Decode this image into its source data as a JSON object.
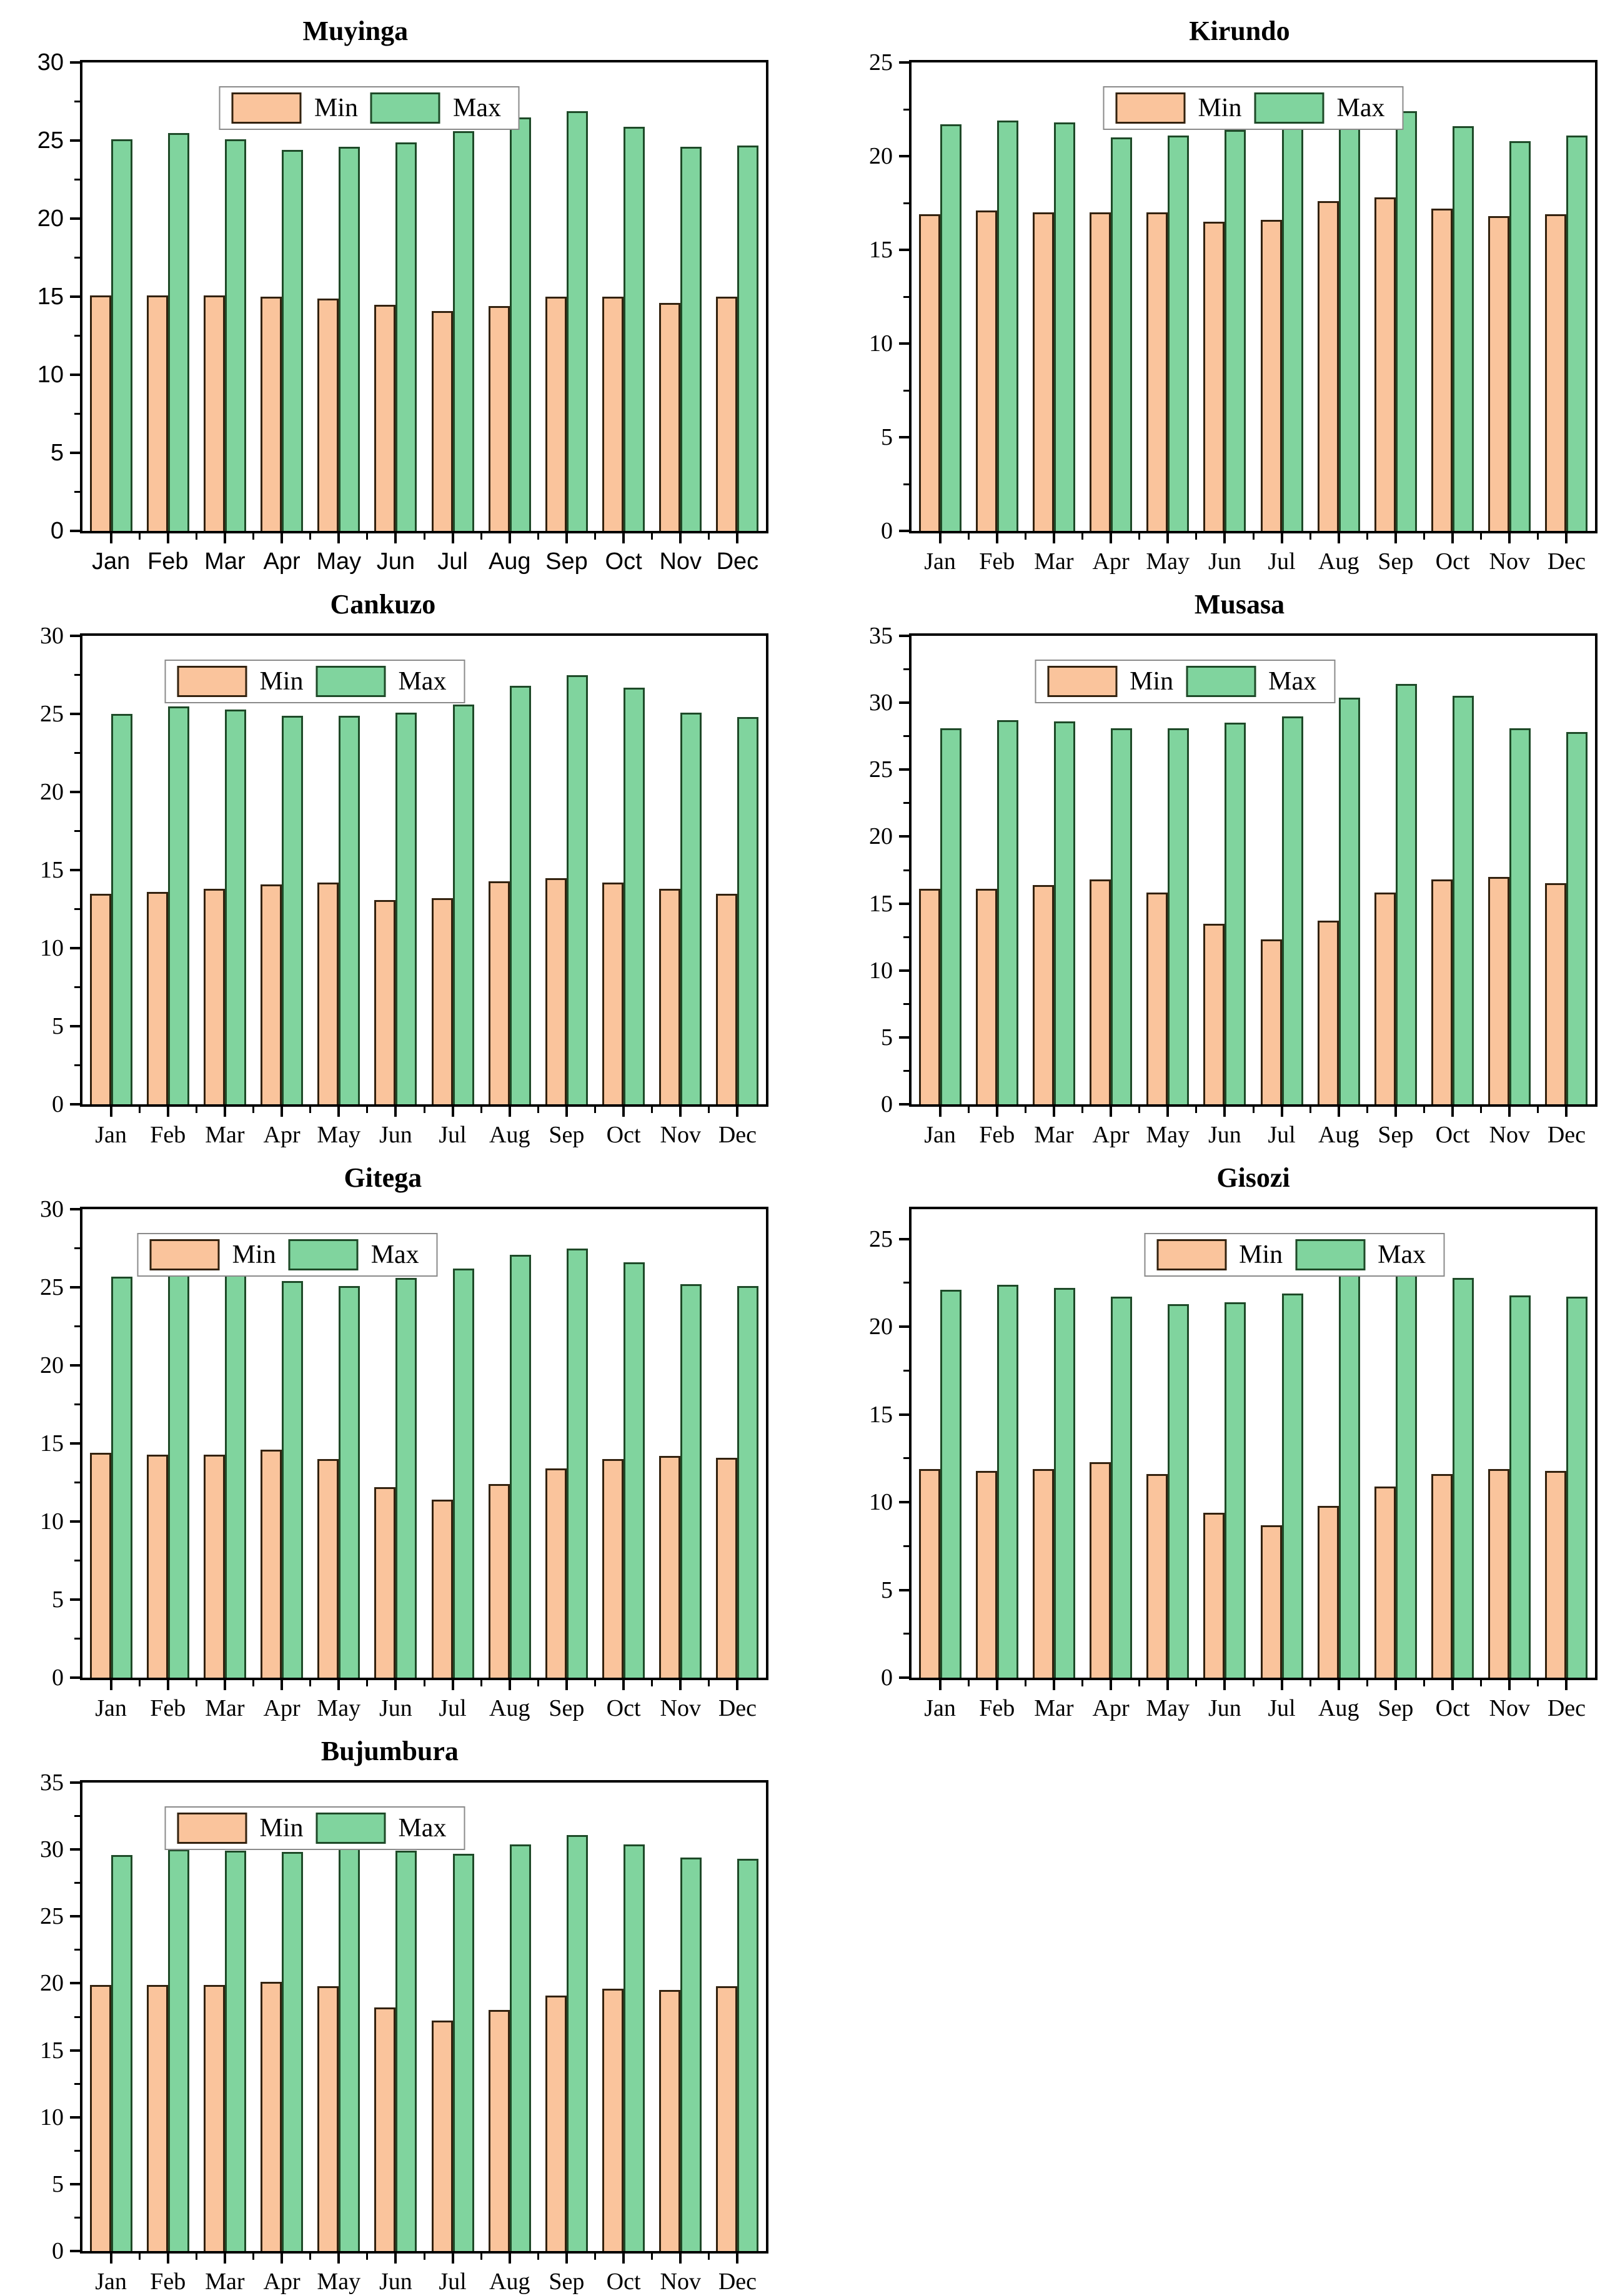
{
  "page": {
    "background": "#ffffff"
  },
  "legend": {
    "min_label": "Min",
    "max_label": "Max"
  },
  "colors": {
    "min_fill": "#FAC49C",
    "min_border": "#33220F",
    "max_fill": "#80D49E",
    "max_border": "#1E4A28",
    "frame": "#000000",
    "legend_border": "#8A8A8A",
    "text": "#000000"
  },
  "chart_data": [
    {
      "type": "bar",
      "title": "Muyinga",
      "categories": [
        "Jan",
        "Feb",
        "Mar",
        "Apr",
        "May",
        "Jun",
        "Jul",
        "Aug",
        "Sep",
        "Oct",
        "Nov",
        "Dec"
      ],
      "series": [
        {
          "name": "Min",
          "values": [
            15.1,
            15.1,
            15.1,
            15.0,
            14.9,
            14.5,
            14.1,
            14.4,
            15.0,
            15.0,
            14.6,
            15.0
          ]
        },
        {
          "name": "Max",
          "values": [
            25.1,
            25.5,
            25.1,
            24.4,
            24.6,
            24.9,
            25.6,
            26.5,
            26.9,
            25.9,
            24.6,
            24.7
          ]
        }
      ],
      "xlabel": "",
      "ylabel": "",
      "ylim": [
        0,
        30
      ],
      "yticks": [
        0,
        5,
        10,
        15,
        20,
        25,
        30
      ],
      "minor_step": 2.5,
      "grid": false,
      "legend_position": "top-center",
      "tick_font": "sans",
      "title_center_frac": 0.4,
      "legend_center_frac": 0.42
    },
    {
      "type": "bar",
      "title": "Kirundo",
      "categories": [
        "Jan",
        "Feb",
        "Mar",
        "Apr",
        "May",
        "Jun",
        "Jul",
        "Aug",
        "Sep",
        "Oct",
        "Nov",
        "Dec"
      ],
      "series": [
        {
          "name": "Min",
          "values": [
            16.9,
            17.1,
            17.0,
            17.0,
            17.0,
            16.5,
            16.6,
            17.6,
            17.8,
            17.2,
            16.8,
            16.9
          ]
        },
        {
          "name": "Max",
          "values": [
            21.7,
            21.9,
            21.8,
            21.0,
            21.1,
            21.4,
            21.9,
            22.6,
            22.4,
            21.6,
            20.8,
            21.1
          ]
        }
      ],
      "xlabel": "",
      "ylabel": "",
      "ylim": [
        0,
        25
      ],
      "yticks": [
        0,
        5,
        10,
        15,
        20,
        25
      ],
      "minor_step": 2.5,
      "grid": false,
      "legend_position": "top-center",
      "tick_font": "serif",
      "title_center_frac": 0.48,
      "legend_center_frac": 0.5
    },
    {
      "type": "bar",
      "title": "Cankuzo",
      "categories": [
        "Jan",
        "Feb",
        "Mar",
        "Apr",
        "May",
        "Jun",
        "Jul",
        "Aug",
        "Sep",
        "Oct",
        "Nov",
        "Dec"
      ],
      "series": [
        {
          "name": "Min",
          "values": [
            13.5,
            13.6,
            13.8,
            14.1,
            14.2,
            13.1,
            13.2,
            14.3,
            14.5,
            14.2,
            13.8,
            13.5
          ]
        },
        {
          "name": "Max",
          "values": [
            25.0,
            25.5,
            25.3,
            24.9,
            24.9,
            25.1,
            25.6,
            26.8,
            27.5,
            26.7,
            25.1,
            24.8
          ]
        }
      ],
      "xlabel": "",
      "ylabel": "",
      "ylim": [
        0,
        30
      ],
      "yticks": [
        0,
        5,
        10,
        15,
        20,
        25,
        30
      ],
      "minor_step": 2.5,
      "grid": false,
      "legend_position": "top-left-of-center",
      "tick_font": "serif",
      "title_center_frac": 0.44,
      "legend_center_frac": 0.34
    },
    {
      "type": "bar",
      "title": "Musasa",
      "categories": [
        "Jan",
        "Feb",
        "Mar",
        "Apr",
        "May",
        "Jun",
        "Jul",
        "Aug",
        "Sep",
        "Oct",
        "Nov",
        "Dec"
      ],
      "series": [
        {
          "name": "Min",
          "values": [
            16.1,
            16.1,
            16.4,
            16.8,
            15.8,
            13.5,
            12.3,
            13.7,
            15.8,
            16.8,
            17.0,
            16.5
          ]
        },
        {
          "name": "Max",
          "values": [
            28.1,
            28.7,
            28.6,
            28.1,
            28.1,
            28.5,
            29.0,
            30.4,
            31.4,
            30.5,
            28.1,
            27.8
          ]
        }
      ],
      "xlabel": "",
      "ylabel": "",
      "ylim": [
        0,
        35
      ],
      "yticks": [
        0,
        5,
        10,
        15,
        20,
        25,
        30,
        35
      ],
      "minor_step": 2.5,
      "grid": false,
      "legend_position": "top-center",
      "tick_font": "serif",
      "title_center_frac": 0.48,
      "legend_center_frac": 0.4
    },
    {
      "type": "bar",
      "title": "Gitega",
      "categories": [
        "Jan",
        "Feb",
        "Mar",
        "Apr",
        "May",
        "Jun",
        "Jul",
        "Aug",
        "Sep",
        "Oct",
        "Nov",
        "Dec"
      ],
      "series": [
        {
          "name": "Min",
          "values": [
            14.4,
            14.3,
            14.3,
            14.6,
            14.0,
            12.2,
            11.4,
            12.4,
            13.4,
            14.0,
            14.2,
            14.1
          ]
        },
        {
          "name": "Max",
          "values": [
            25.7,
            26.1,
            25.9,
            25.4,
            25.1,
            25.6,
            26.2,
            27.1,
            27.5,
            26.6,
            25.2,
            25.1
          ]
        }
      ],
      "xlabel": "",
      "ylabel": "",
      "ylim": [
        0,
        30
      ],
      "yticks": [
        0,
        5,
        10,
        15,
        20,
        25,
        30
      ],
      "minor_step": 2.5,
      "grid": false,
      "legend_position": "top-left-of-center",
      "tick_font": "serif",
      "title_center_frac": 0.44,
      "legend_center_frac": 0.3
    },
    {
      "type": "bar",
      "title": "Gisozi",
      "categories": [
        "Jan",
        "Feb",
        "Mar",
        "Apr",
        "May",
        "Jun",
        "Jul",
        "Aug",
        "Sep",
        "Oct",
        "Nov",
        "Dec"
      ],
      "series": [
        {
          "name": "Min",
          "values": [
            11.9,
            11.8,
            11.9,
            12.3,
            11.6,
            9.4,
            8.7,
            9.8,
            10.9,
            11.6,
            11.9,
            11.8
          ]
        },
        {
          "name": "Max",
          "values": [
            22.1,
            22.4,
            22.2,
            21.7,
            21.3,
            21.4,
            21.9,
            23.0,
            23.6,
            22.8,
            21.8,
            21.7
          ]
        }
      ],
      "xlabel": "",
      "ylabel": "",
      "ylim": [
        0,
        26.7
      ],
      "yticks": [
        0,
        5,
        10,
        15,
        20,
        25
      ],
      "minor_step": 2.5,
      "grid": false,
      "legend_position": "top-right-of-center",
      "tick_font": "serif",
      "title_center_frac": 0.5,
      "legend_center_frac": 0.56
    },
    {
      "type": "bar",
      "title": "Bujumbura",
      "categories": [
        "Jan",
        "Feb",
        "Mar",
        "Apr",
        "May",
        "Jun",
        "Jul",
        "Aug",
        "Sep",
        "Oct",
        "Nov",
        "Dec"
      ],
      "series": [
        {
          "name": "Min",
          "values": [
            19.9,
            19.9,
            19.9,
            20.1,
            19.8,
            18.2,
            17.2,
            18.0,
            19.1,
            19.6,
            19.5,
            19.8
          ]
        },
        {
          "name": "Max",
          "values": [
            29.6,
            30.0,
            29.9,
            29.8,
            30.1,
            29.9,
            29.7,
            30.4,
            31.1,
            30.4,
            29.4,
            29.3
          ]
        }
      ],
      "xlabel": "",
      "ylabel": "",
      "ylim": [
        0,
        35
      ],
      "yticks": [
        0,
        5,
        10,
        15,
        20,
        25,
        30,
        35
      ],
      "minor_step": 2.5,
      "grid": false,
      "legend_position": "top-left-of-center",
      "tick_font": "serif",
      "title_center_frac": 0.45,
      "legend_center_frac": 0.34
    }
  ]
}
